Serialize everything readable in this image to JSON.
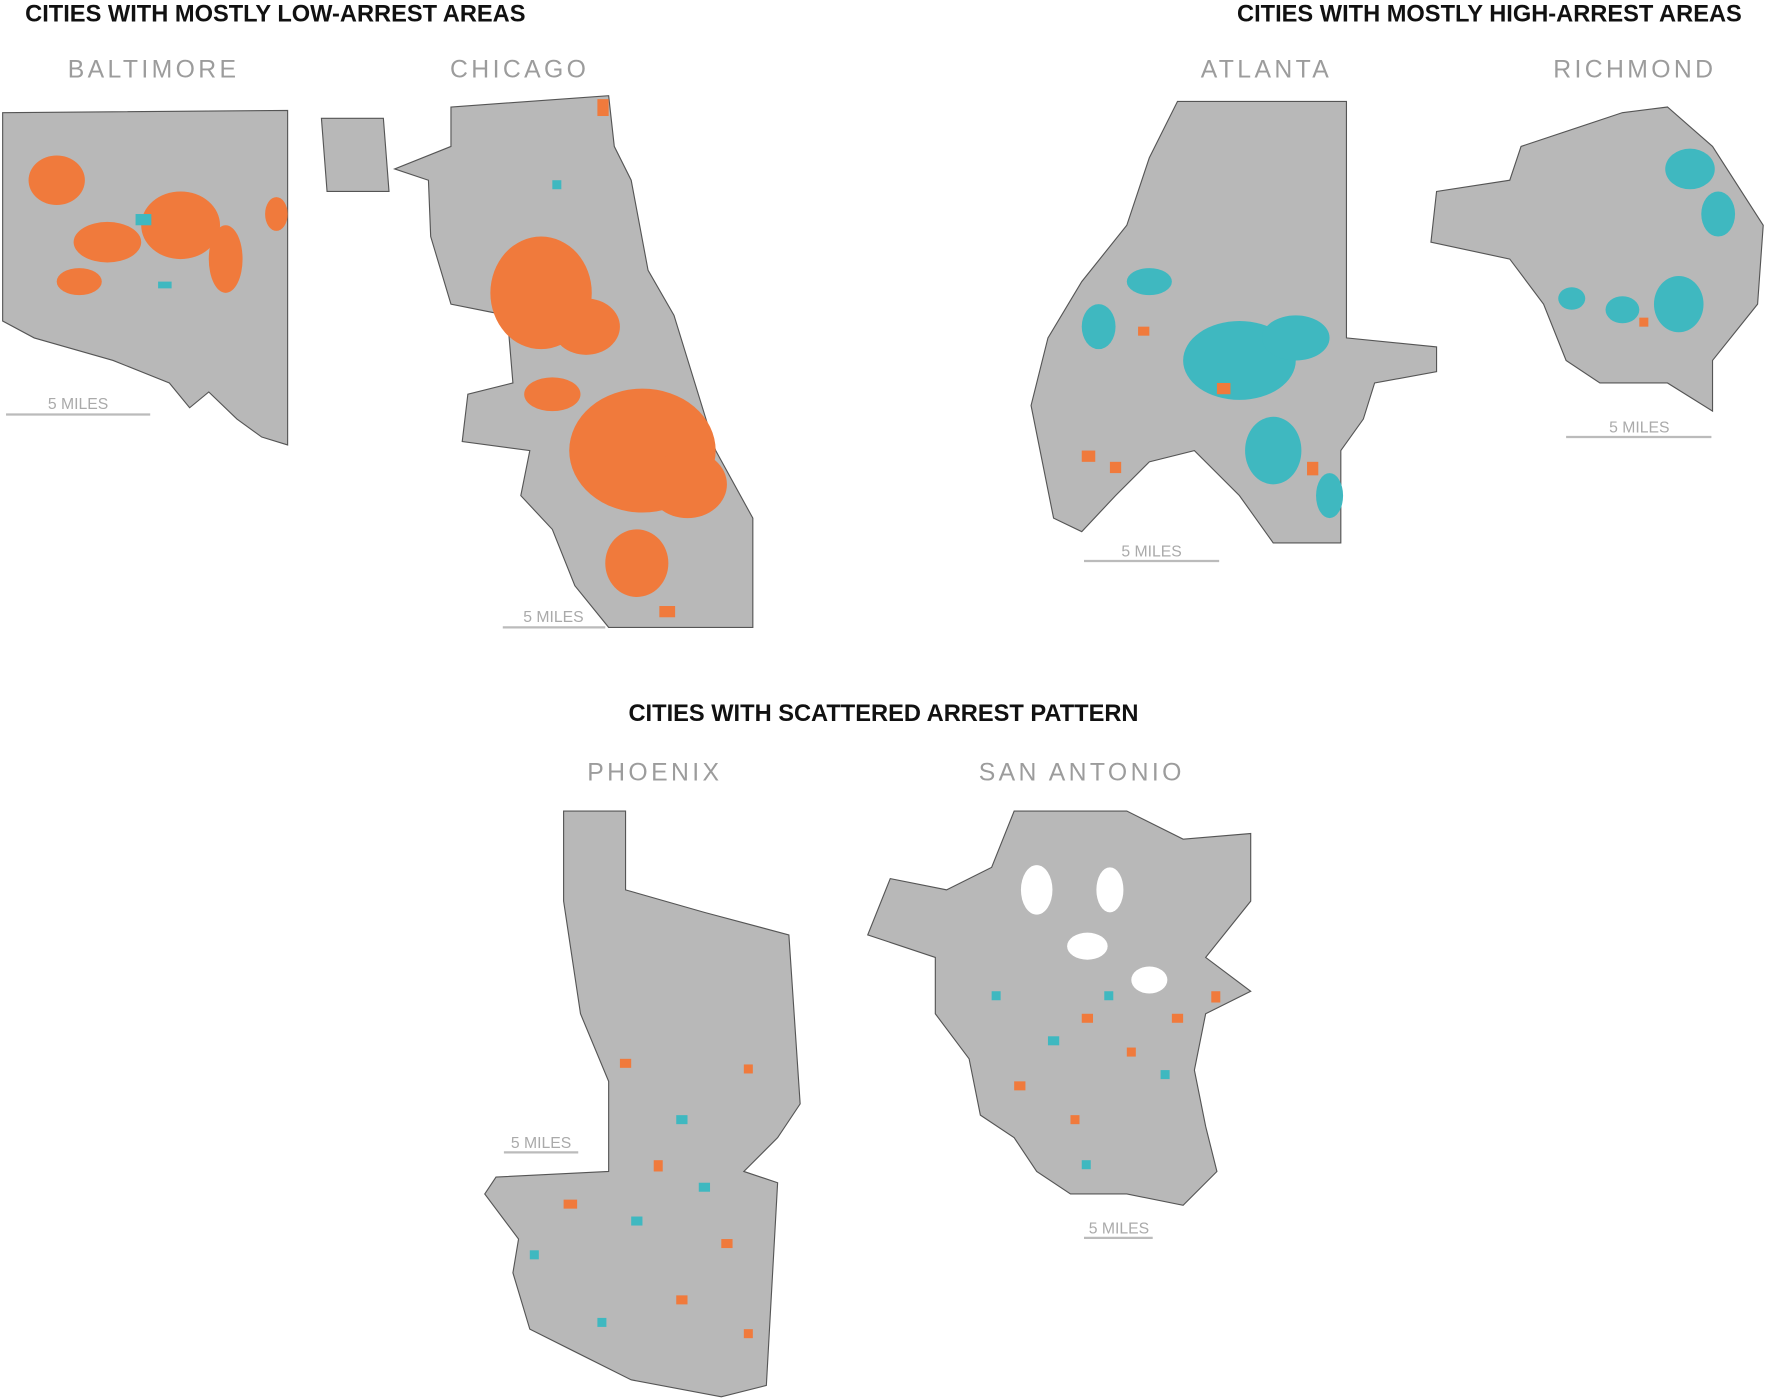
{
  "groups": [
    {
      "title": "CITIES WITH MOSTLY LOW-ARREST AREAS",
      "cities": [
        {
          "name": "BALTIMORE",
          "scale_label": "5 MILES"
        },
        {
          "name": "CHICAGO",
          "scale_label": "5 MILES"
        }
      ]
    },
    {
      "title": "CITIES WITH MOSTLY HIGH-ARREST AREAS",
      "cities": [
        {
          "name": "ATLANTA",
          "scale_label": "5 MILES"
        },
        {
          "name": "RICHMOND",
          "scale_label": "5 MILES"
        }
      ]
    },
    {
      "title": "CITIES WITH SCATTERED ARREST PATTERN",
      "cities": [
        {
          "name": "PHOENIX",
          "scale_label": "5 MILES"
        },
        {
          "name": "SAN ANTONIO",
          "scale_label": "5 MILES"
        }
      ]
    }
  ]
}
